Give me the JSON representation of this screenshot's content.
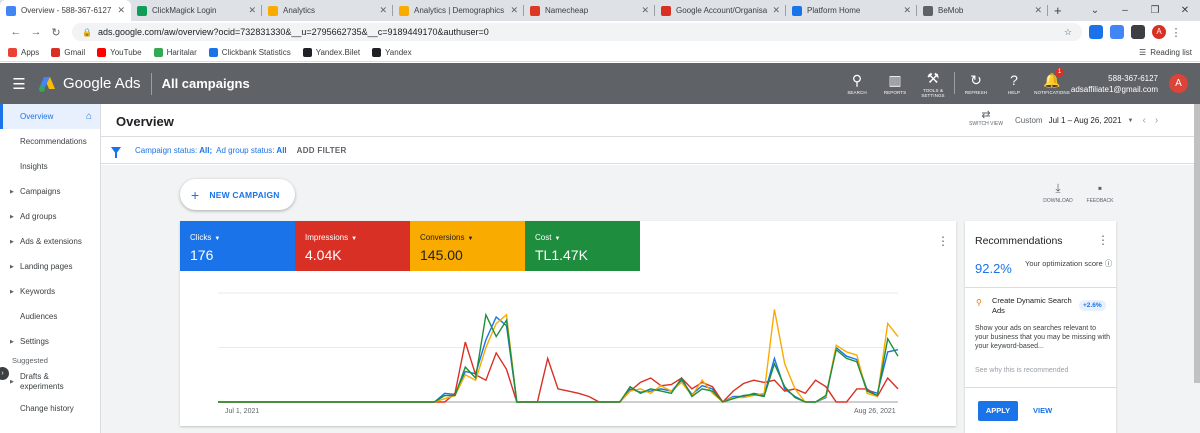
{
  "browser": {
    "tabs": [
      {
        "title": "Overview - 588-367-6127",
        "color": "#4285f4"
      },
      {
        "title": "ClickMagick Login",
        "color": "#0f9d58"
      },
      {
        "title": "Analytics",
        "color": "#f9ab00"
      },
      {
        "title": "Analytics | Demographics",
        "color": "#f9ab00"
      },
      {
        "title": "Namecheap",
        "color": "#de3723"
      },
      {
        "title": "Google Account/Organisa",
        "color": "#d93025"
      },
      {
        "title": "Platform Home",
        "color": "#1a73e8"
      },
      {
        "title": "BeMob",
        "color": "#5f6368"
      }
    ],
    "new_tab": "+",
    "url": "ads.google.com/aw/overview?ocid=732831330&__u=2795662735&__c=9189449170&authuser=0",
    "avatar_letter": "A",
    "bookmarks": [
      {
        "label": "Apps",
        "color": "#ea4335"
      },
      {
        "label": "Gmail",
        "color": "#d93025"
      },
      {
        "label": "YouTube",
        "color": "#ff0000"
      },
      {
        "label": "Haritalar",
        "color": "#34a853"
      },
      {
        "label": "Clickbank Statistics",
        "color": "#1a73e8"
      },
      {
        "label": "Yandex.Bilet",
        "color": "#202124"
      },
      {
        "label": "Yandex",
        "color": "#202124"
      }
    ],
    "reading_list": "Reading list"
  },
  "header": {
    "brand": "Google Ads",
    "page_title": "All campaigns",
    "icons": [
      {
        "label": "SEARCH",
        "glyph": "⚲",
        "icon": "search-icon"
      },
      {
        "label": "REPORTS",
        "glyph": "▥",
        "icon": "reports-icon"
      },
      {
        "label": "TOOLS & SETTINGS",
        "glyph": "⚒",
        "icon": "tools-icon"
      }
    ],
    "icons2": [
      {
        "label": "REFRESH",
        "glyph": "↻",
        "icon": "refresh-icon"
      },
      {
        "label": "HELP",
        "glyph": "?",
        "icon": "help-icon"
      },
      {
        "label": "NOTIFICATIONS",
        "glyph": "🔔",
        "icon": "bell-icon",
        "badge": "1"
      }
    ],
    "account_id": "588-367-6127",
    "account_email": "adsaffiliate1@gmail.com",
    "avatar_letter": "A"
  },
  "sidebar": {
    "items": [
      {
        "label": "Overview",
        "active": true,
        "arrow": false
      },
      {
        "label": "Recommendations",
        "arrow": false
      },
      {
        "label": "Insights",
        "arrow": false
      },
      {
        "label": "Campaigns",
        "arrow": true
      },
      {
        "label": "Ad groups",
        "arrow": true
      },
      {
        "label": "Ads & extensions",
        "arrow": true
      },
      {
        "label": "Landing pages",
        "arrow": true
      },
      {
        "label": "Keywords",
        "arrow": true
      },
      {
        "label": "Audiences",
        "arrow": false
      },
      {
        "label": "Settings",
        "arrow": true
      }
    ],
    "suggested_label": "Suggested",
    "suggested": [
      {
        "label": "Drafts & experiments",
        "arrow": true
      },
      {
        "label": "Change history",
        "arrow": false
      }
    ]
  },
  "main": {
    "title": "Overview",
    "switch_view": "SWITCH VIEW",
    "date_label": "Custom",
    "date_value": "Jul 1 – Aug 26, 2021",
    "filter": {
      "campaign_key": "Campaign status:",
      "campaign_val": "All;",
      "adgroup_key": "Ad group status:",
      "adgroup_val": "All",
      "add_filter": "ADD FILTER"
    },
    "new_campaign": "NEW CAMPAIGN",
    "download": "DOWNLOAD",
    "feedback": "FEEDBACK"
  },
  "metrics": [
    {
      "label": "Clicks",
      "value": "176",
      "color": "#1a73e8"
    },
    {
      "label": "Impressions",
      "value": "4.04K",
      "color": "#d93025"
    },
    {
      "label": "Conversions",
      "value": "145.00",
      "color": "#f9ab00"
    },
    {
      "label": "Cost",
      "value": "TL1.47K",
      "color": "#1e8e3e"
    }
  ],
  "chart_data": {
    "type": "line",
    "x_start_label": "Jul 1, 2021",
    "x_end_label": "Aug 26, 2021",
    "ylim": [
      0,
      100
    ],
    "grid": true,
    "series": [
      {
        "name": "Clicks",
        "color": "#1a73e8",
        "values": [
          0,
          0,
          0,
          0,
          0,
          0,
          0,
          0,
          0,
          0,
          0,
          0,
          0,
          0,
          0,
          0,
          0,
          0,
          0,
          0,
          0,
          0,
          8,
          7,
          28,
          26,
          57,
          78,
          70,
          0,
          0,
          0,
          0,
          0,
          0,
          0,
          0,
          0,
          0,
          0,
          12,
          9,
          10,
          12,
          10,
          20,
          7,
          15,
          12,
          0,
          5,
          5,
          8,
          6,
          40,
          12,
          5,
          0,
          0,
          4,
          50,
          42,
          39,
          11,
          8,
          46,
          48
        ]
      },
      {
        "name": "Impressions",
        "color": "#d93025",
        "values": [
          0,
          0,
          0,
          0,
          0,
          0,
          0,
          0,
          0,
          0,
          0,
          0,
          0,
          0,
          0,
          0,
          0,
          0,
          0,
          0,
          0,
          0,
          0,
          8,
          55,
          25,
          20,
          45,
          30,
          0,
          0,
          0,
          40,
          12,
          10,
          8,
          5,
          0,
          0,
          0,
          10,
          18,
          22,
          15,
          16,
          22,
          12,
          18,
          14,
          0,
          10,
          17,
          20,
          18,
          20,
          10,
          12,
          8,
          20,
          14,
          0,
          0,
          12,
          12,
          5,
          22,
          12
        ]
      },
      {
        "name": "Conversions",
        "color": "#f9ab00",
        "values": [
          0,
          0,
          0,
          0,
          0,
          0,
          0,
          0,
          0,
          0,
          0,
          0,
          0,
          0,
          0,
          0,
          0,
          0,
          0,
          0,
          0,
          0,
          3,
          6,
          25,
          20,
          50,
          72,
          80,
          0,
          0,
          0,
          0,
          0,
          0,
          0,
          0,
          0,
          0,
          0,
          10,
          12,
          8,
          15,
          10,
          18,
          6,
          20,
          8,
          0,
          4,
          4,
          6,
          8,
          85,
          35,
          12,
          0,
          0,
          5,
          52,
          46,
          43,
          8,
          5,
          72,
          60
        ]
      },
      {
        "name": "Cost",
        "color": "#1e8e3e",
        "values": [
          0,
          0,
          0,
          0,
          0,
          0,
          0,
          0,
          0,
          0,
          0,
          0,
          0,
          0,
          0,
          0,
          0,
          0,
          0,
          0,
          0,
          0,
          6,
          6,
          32,
          22,
          80,
          60,
          75,
          0,
          0,
          0,
          0,
          0,
          0,
          0,
          0,
          0,
          0,
          0,
          14,
          8,
          12,
          10,
          8,
          22,
          5,
          12,
          10,
          0,
          3,
          6,
          7,
          5,
          35,
          14,
          4,
          0,
          0,
          6,
          48,
          40,
          37,
          10,
          6,
          58,
          42
        ]
      }
    ]
  },
  "recommendations": {
    "title": "Recommendations",
    "score": "92.2%",
    "score_label": "Your optimization score",
    "item_title": "Create Dynamic Search Ads",
    "item_badge": "+2.6%",
    "item_desc": "Show your ads on searches relevant to your business that you may be missing with your keyword-based...",
    "see_why": "See why this is recommended",
    "apply": "APPLY",
    "view": "VIEW"
  }
}
